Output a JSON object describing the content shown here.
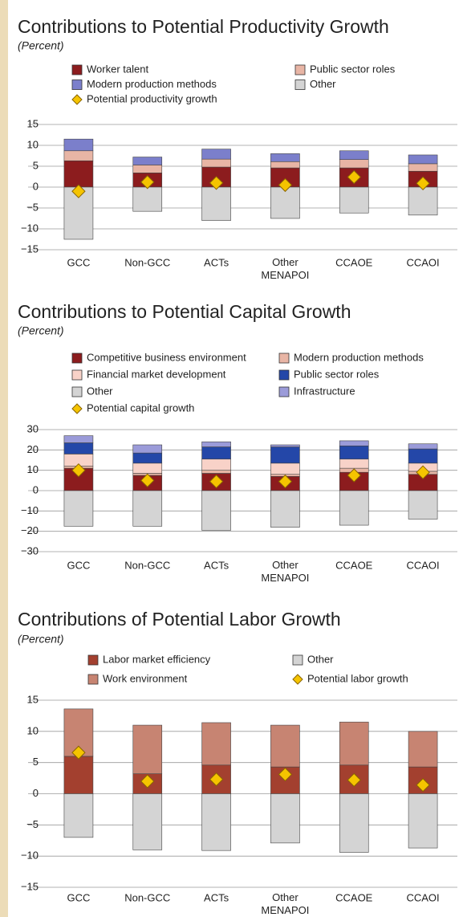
{
  "chart_data": [
    {
      "type": "bar",
      "title": "Contributions to Potential Productivity Growth",
      "subtitle": "(Percent)",
      "categories": [
        "GCC",
        "Non-GCC",
        "ACTs",
        "Other MENAPOI",
        "CCAOE",
        "CCAOI"
      ],
      "series": [
        {
          "name": "Worker talent",
          "color": "#8c1c1e",
          "values": [
            6.3,
            3.4,
            4.8,
            4.6,
            4.6,
            3.8
          ]
        },
        {
          "name": "Public sector roles",
          "color": "#e8b5a5",
          "values": [
            2.4,
            1.9,
            1.9,
            1.5,
            2.0,
            1.8
          ]
        },
        {
          "name": "Modern production methods",
          "color": "#7b7fcb",
          "values": [
            2.8,
            1.9,
            2.4,
            1.9,
            2.1,
            2.1
          ]
        },
        {
          "name": "Other",
          "color": "#d4d4d4",
          "values": [
            -12.5,
            -5.8,
            -8.0,
            -7.5,
            -6.2,
            -6.7
          ]
        },
        {
          "name": "Potential productivity growth",
          "color": "#f5c400",
          "marker": "diamond",
          "values": [
            -1.0,
            1.2,
            1.0,
            0.5,
            2.4,
            0.9
          ]
        }
      ],
      "ylim": [
        -15,
        15
      ],
      "yticks": [
        {
          "value": -15,
          "label": "−15"
        },
        {
          "value": -10,
          "label": "−10"
        },
        {
          "value": -5,
          "label": "−5"
        },
        0,
        5,
        10,
        15
      ],
      "grid": true
    },
    {
      "type": "bar",
      "title": "Contributions to Potential Capital Growth",
      "subtitle": "(Percent)",
      "categories": [
        "GCC",
        "Non-GCC",
        "ACTs",
        "Other MENAPOI",
        "CCAOE",
        "CCAOI"
      ],
      "series": [
        {
          "name": "Competitive business environment",
          "color": "#8c1c1e",
          "values": [
            11,
            7.5,
            8.5,
            7,
            9,
            8
          ]
        },
        {
          "name": "Modern production methods",
          "color": "#e8b5a5",
          "values": [
            1,
            1,
            1.5,
            1,
            2,
            1.5
          ]
        },
        {
          "name": "Financial market development",
          "color": "#f8d2c8",
          "values": [
            6,
            5,
            5.5,
            5.5,
            4.5,
            4
          ]
        },
        {
          "name": "Public sector roles",
          "color": "#2447a8",
          "values": [
            5.5,
            5,
            6,
            8,
            6.5,
            7
          ]
        },
        {
          "name": "Other",
          "color": "#d4d4d4",
          "values": [
            -17.5,
            -17.5,
            -19.5,
            -18,
            -17,
            -14
          ]
        },
        {
          "name": "Infrastructure",
          "color": "#9b9bd9",
          "values": [
            3.5,
            4,
            2.5,
            1,
            2.5,
            2.5
          ]
        },
        {
          "name": "Potential capital growth",
          "color": "#f5c400",
          "marker": "diamond",
          "values": [
            10,
            5,
            4.5,
            4.5,
            7.5,
            9
          ]
        }
      ],
      "ylim": [
        -30,
        30
      ],
      "yticks": [
        {
          "value": -30,
          "label": "−30"
        },
        {
          "value": -20,
          "label": "−20"
        },
        {
          "value": -10,
          "label": "−10"
        },
        0,
        10,
        20,
        30
      ],
      "grid": true
    },
    {
      "type": "bar",
      "title": "Contributions of Potential Labor Growth",
      "subtitle": "(Percent)",
      "categories": [
        "GCC",
        "Non-GCC",
        "ACTs",
        "Other MENAPOI",
        "CCAOE",
        "CCAOI"
      ],
      "series": [
        {
          "name": "Labor market efficiency",
          "color": "#a3402f",
          "values": [
            6,
            3.2,
            4.6,
            4.3,
            4.6,
            4.3
          ]
        },
        {
          "name": "Other",
          "color": "#d4d4d4",
          "values": [
            -7,
            -9,
            -9.1,
            -7.9,
            -9.4,
            -8.7
          ]
        },
        {
          "name": "Work environment",
          "color": "#c78472",
          "values": [
            7.6,
            7.8,
            6.8,
            6.7,
            6.9,
            5.7
          ]
        },
        {
          "name": "Potential labor growth",
          "color": "#f5c400",
          "marker": "diamond",
          "values": [
            6.6,
            2,
            2.3,
            3.1,
            2.2,
            1.4
          ]
        }
      ],
      "ylim": [
        -15,
        15
      ],
      "yticks": [
        {
          "value": -15,
          "label": "−15"
        },
        0,
        {
          "value": -10,
          "label": "−10"
        },
        {
          "value": -5,
          "label": "−5"
        },
        5,
        10,
        15
      ],
      "grid": true
    }
  ]
}
